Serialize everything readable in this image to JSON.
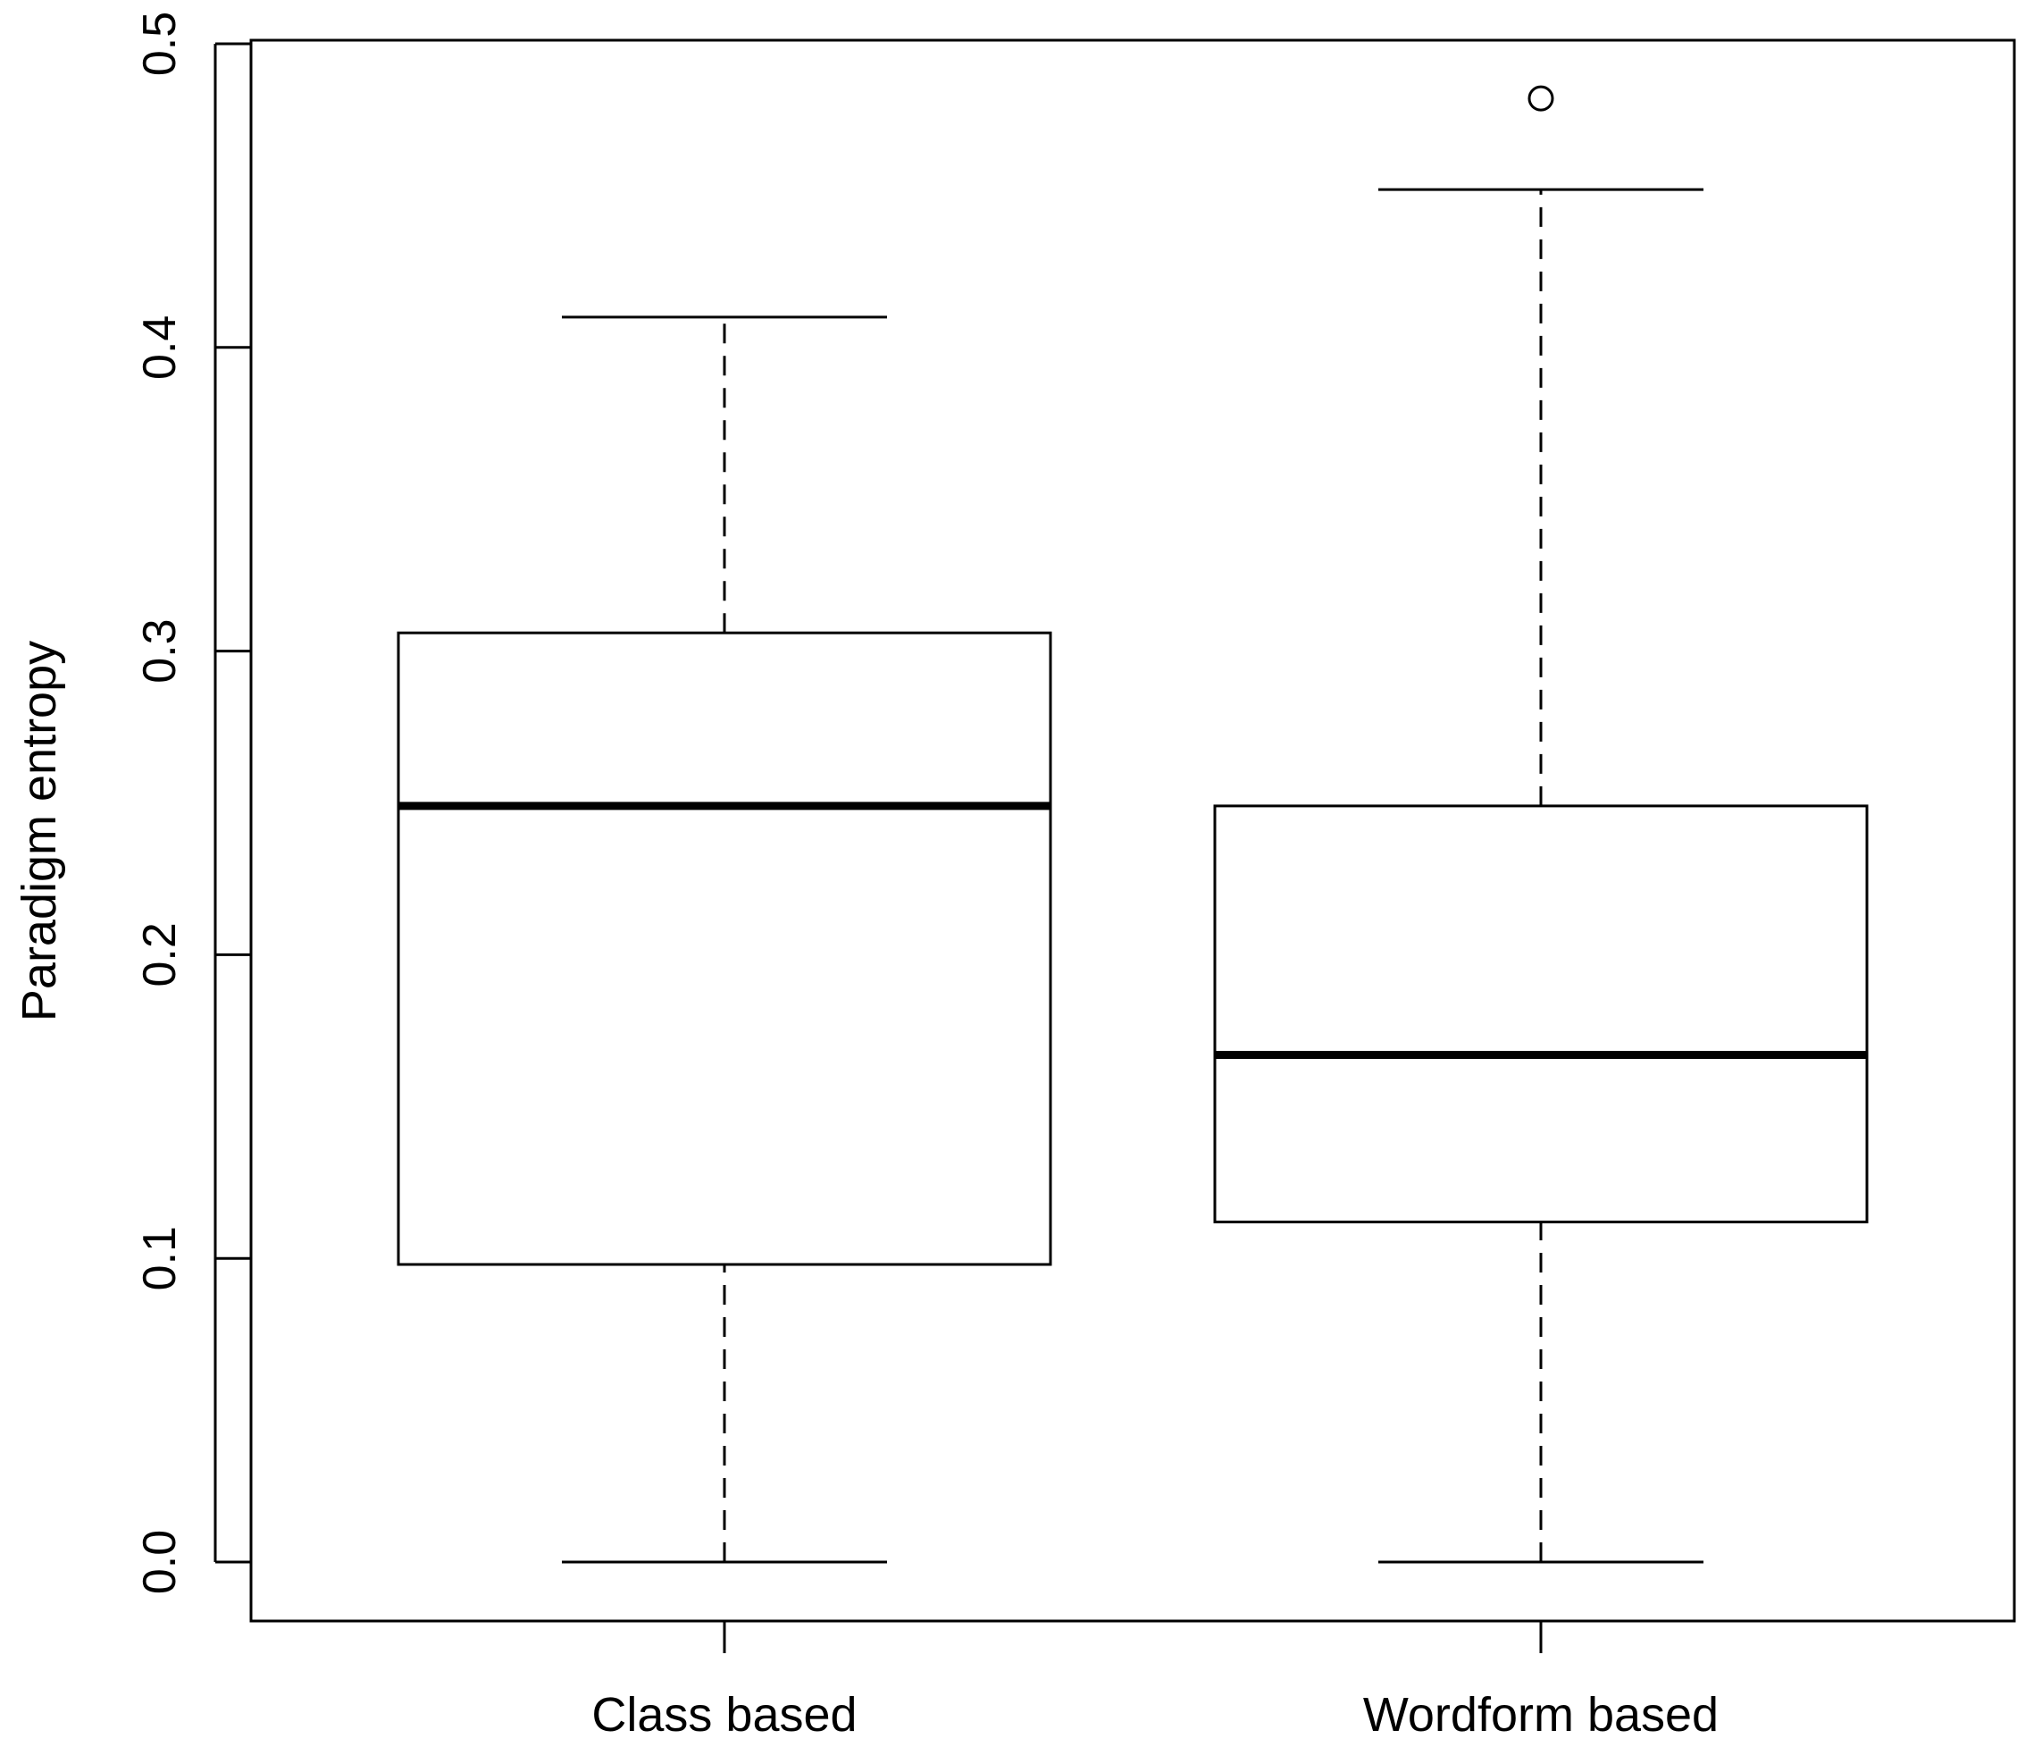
{
  "chart_data": {
    "type": "boxplot",
    "title": "",
    "xlabel": "",
    "ylabel": "Paradigm entropy",
    "ylim": [
      -0.02,
      0.5
    ],
    "yticks": [
      0.0,
      0.1,
      0.2,
      0.3,
      0.4,
      0.5
    ],
    "ytick_labels": [
      "0.0",
      "0.1",
      "0.2",
      "0.3",
      "0.4",
      "0.5"
    ],
    "categories": [
      "Class based",
      "Wordform based"
    ],
    "boxes": [
      {
        "category": "Class based",
        "whisker_low": 0.0,
        "q1": 0.098,
        "median": 0.249,
        "q3": 0.306,
        "whisker_high": 0.41,
        "outliers": []
      },
      {
        "category": "Wordform based",
        "whisker_low": 0.0,
        "q1": 0.112,
        "median": 0.167,
        "q3": 0.249,
        "whisker_high": 0.452,
        "outliers": [
          0.482
        ]
      }
    ],
    "grid": false,
    "legend": "none"
  }
}
